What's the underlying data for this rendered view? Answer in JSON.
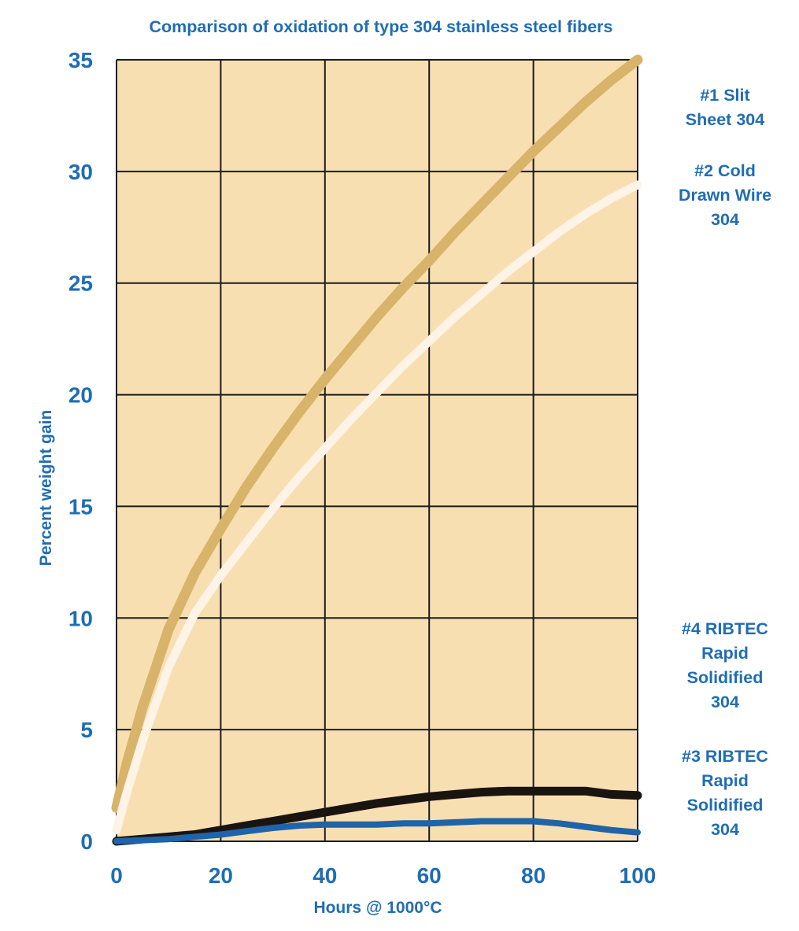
{
  "chart_data": {
    "type": "line",
    "title": "Comparison of oxidation of type 304 stainless steel fibers",
    "xlabel": "Hours @ 1000°C",
    "ylabel": "Percent weight gain",
    "xlim": [
      0,
      100
    ],
    "ylim": [
      0,
      35
    ],
    "xticks": [
      0,
      20,
      40,
      60,
      80,
      100
    ],
    "yticks": [
      0,
      5,
      10,
      15,
      20,
      25,
      30,
      35
    ],
    "grid": true,
    "legend": "right, labels beside each curve",
    "colors": {
      "background": "#f8dfb2",
      "grid": "#1c1c1c",
      "text": "#1f6db4"
    },
    "series": [
      {
        "name": "#1 Slit Sheet 304",
        "label_lines": [
          "#1 Slit",
          "Sheet 304"
        ],
        "color": "#d8b46a",
        "x": [
          0,
          2,
          5,
          10,
          15,
          20,
          25,
          30,
          35,
          40,
          45,
          50,
          55,
          60,
          65,
          70,
          75,
          80,
          85,
          90,
          95,
          100
        ],
        "y": [
          1.5,
          3.5,
          6.0,
          9.5,
          12.0,
          14.0,
          15.9,
          17.6,
          19.2,
          20.7,
          22.1,
          23.5,
          24.8,
          26.0,
          27.3,
          28.5,
          29.7,
          30.9,
          32.0,
          33.1,
          34.1,
          35.0
        ]
      },
      {
        "name": "#2 Cold Drawn Wire 304",
        "label_lines": [
          "#2 Cold",
          "Drawn Wire",
          "304"
        ],
        "color": "#fdf3e6",
        "x": [
          0,
          2,
          5,
          10,
          15,
          20,
          25,
          30,
          35,
          40,
          45,
          50,
          55,
          60,
          65,
          70,
          75,
          80,
          85,
          90,
          95,
          100
        ],
        "y": [
          0.5,
          2.2,
          4.5,
          7.8,
          10.2,
          11.9,
          13.4,
          14.9,
          16.3,
          17.6,
          18.9,
          20.1,
          21.3,
          22.4,
          23.5,
          24.5,
          25.5,
          26.4,
          27.3,
          28.1,
          28.8,
          29.4
        ]
      },
      {
        "name": "#4 RIBTEC Rapid Solidified 304",
        "label_lines": [
          "#4 RIBTEC",
          "Rapid",
          "Solidified",
          "304"
        ],
        "color": "#1a1410",
        "x": [
          0,
          5,
          10,
          15,
          20,
          25,
          30,
          35,
          40,
          45,
          50,
          55,
          60,
          65,
          70,
          75,
          80,
          85,
          90,
          95,
          100
        ],
        "y": [
          0.0,
          0.1,
          0.2,
          0.3,
          0.5,
          0.7,
          0.9,
          1.1,
          1.3,
          1.5,
          1.7,
          1.85,
          2.0,
          2.1,
          2.2,
          2.25,
          2.25,
          2.25,
          2.25,
          2.1,
          2.05
        ]
      },
      {
        "name": "#3 RIBTEC Rapid Solidified 304",
        "label_lines": [
          "#3 RIBTEC",
          "Rapid",
          "Solidified",
          "304"
        ],
        "color": "#1f63a8",
        "x": [
          0,
          5,
          10,
          15,
          20,
          25,
          30,
          35,
          40,
          45,
          50,
          55,
          60,
          65,
          70,
          75,
          80,
          85,
          90,
          95,
          100
        ],
        "y": [
          0.0,
          0.05,
          0.1,
          0.2,
          0.3,
          0.45,
          0.6,
          0.7,
          0.75,
          0.75,
          0.75,
          0.8,
          0.8,
          0.85,
          0.9,
          0.9,
          0.9,
          0.8,
          0.65,
          0.5,
          0.4
        ]
      }
    ]
  }
}
